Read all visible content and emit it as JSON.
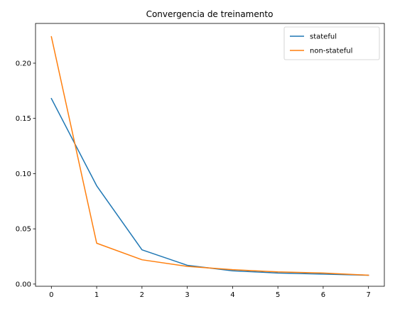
{
  "chart_data": {
    "type": "line",
    "title": "Convergencia de treinamento",
    "xlabel": "",
    "ylabel": "",
    "x": [
      0,
      1,
      2,
      3,
      4,
      5,
      6,
      7
    ],
    "xlim": [
      -0.35,
      7.35
    ],
    "ylim": [
      -0.002,
      0.236
    ],
    "xticks": [
      0,
      1,
      2,
      3,
      4,
      5,
      6,
      7
    ],
    "yticks": [
      0.0,
      0.05,
      0.1,
      0.15,
      0.2
    ],
    "ytick_labels": [
      "0.00",
      "0.05",
      "0.10",
      "0.15",
      "0.20"
    ],
    "grid": false,
    "legend_position": "top-right",
    "series": [
      {
        "name": "stateful",
        "color": "#1f77b4",
        "values": [
          0.168,
          0.089,
          0.031,
          0.017,
          0.012,
          0.01,
          0.009,
          0.008
        ]
      },
      {
        "name": "non-stateful",
        "color": "#ff7f0e",
        "values": [
          0.224,
          0.037,
          0.022,
          0.016,
          0.013,
          0.011,
          0.01,
          0.008
        ]
      }
    ]
  }
}
